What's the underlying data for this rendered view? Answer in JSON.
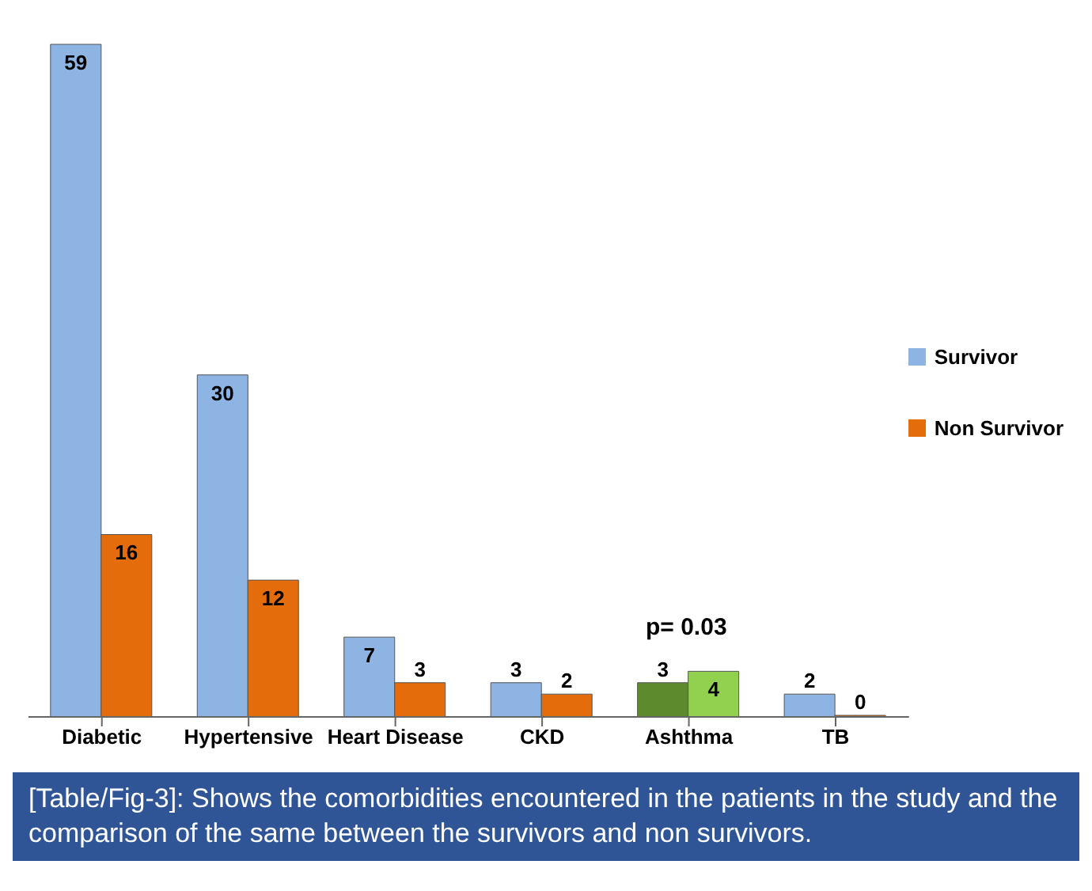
{
  "chart_data": {
    "type": "bar",
    "categories": [
      "Diabetic",
      "Hypertensive",
      "Heart Disease",
      "CKD",
      "Ashthma",
      "TB"
    ],
    "series": [
      {
        "name": "Survivor",
        "color": "#8db4e2",
        "colors": [
          "#8db4e2",
          "#8db4e2",
          "#8db4e2",
          "#8db4e2",
          "#5e8a2e",
          "#8db4e2"
        ],
        "values": [
          59,
          30,
          7,
          3,
          3,
          2
        ]
      },
      {
        "name": "Non Survivor",
        "color": "#e46c0a",
        "colors": [
          "#e46c0a",
          "#e46c0a",
          "#e46c0a",
          "#e46c0a",
          "#92d050",
          "#e46c0a"
        ],
        "values": [
          16,
          12,
          3,
          2,
          4,
          0
        ]
      }
    ],
    "data_labels": true,
    "tick_labels": "x",
    "legend": "right",
    "grid": false,
    "annotations": [
      "p= 0.03",
      "[Table/Fig-3]: Shows the comorbidities encountered in the patients in the study and the comparison of the same between the survivors and non survivors."
    ]
  }
}
